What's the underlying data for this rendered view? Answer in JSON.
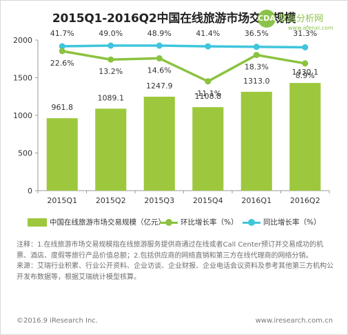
{
  "title": "2015Q1-2016Q2中国在线旅游市场交易规模",
  "watermark": {
    "badge": "CDA",
    "text": "数据分析网",
    "url": "www.afenxi.com"
  },
  "colors": {
    "bar": "#9dc83e",
    "qoq_line": "#8bc23f",
    "yoy_line": "#3fc5dc",
    "axis": "#9a9a9a",
    "grid": "#cccccc",
    "text": "#333333"
  },
  "chart_data": {
    "type": "bar",
    "categories": [
      "2015Q1",
      "2015Q2",
      "2015Q3",
      "2015Q4",
      "2016Q1",
      "2016Q2"
    ],
    "ylim": [
      0,
      2000
    ],
    "yticks": [
      0,
      500,
      1000,
      1500,
      2000
    ],
    "grid": false,
    "legend_position": "bottom",
    "series": [
      {
        "name": "中国在线旅游市场交易规模（亿元）",
        "type": "bar",
        "values": [
          961.8,
          1089.1,
          1247.9,
          1108.8,
          1313.0,
          1430.1
        ],
        "labels": [
          "961.8",
          "1089.1",
          "1247.9",
          "1108.8",
          "1313.0",
          "1430.1"
        ]
      },
      {
        "name": "环比增长率（%）",
        "type": "line",
        "values": [
          22.6,
          13.2,
          14.6,
          -11.1,
          18.3,
          8.9
        ],
        "labels": [
          "22.6%",
          "13.2%",
          "14.6%",
          "-11.1%",
          "18.3%",
          "8.9%"
        ]
      },
      {
        "name": "同比增长率（%）",
        "type": "line",
        "values": [
          41.7,
          49.0,
          48.9,
          41.4,
          36.5,
          31.3
        ],
        "labels": [
          "41.7%",
          "49.0%",
          "48.9%",
          "41.4%",
          "36.5%",
          "31.3%"
        ]
      }
    ]
  },
  "notes": [
    "注释：1.在线旅游市场交易规模指在线旅游服务提供商通过在线或者Call Center预订并交易成功的机票、酒店、度假等旅行产品价值总额；2.包括供应商的网络直销和第三方在线代理商的网络分销。",
    "来源：艾瑞行业积累、行业公开资料、企业访谈、企业财报、企业电话会议资料及参考其他第三方机构公开发布数据等，根据艾瑞统计模型核算。"
  ],
  "footer": {
    "left": "©2016.9 iResearch Inc.",
    "right": "www.iresearch.com.cn"
  }
}
